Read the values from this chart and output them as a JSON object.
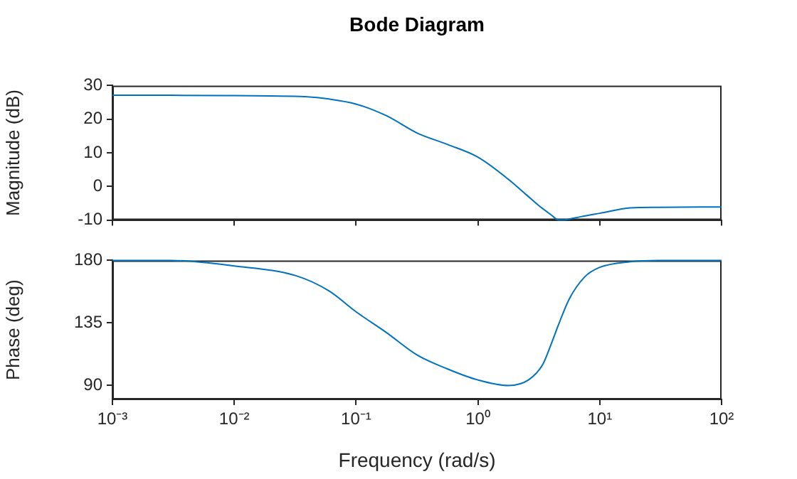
{
  "chart_data": [
    {
      "type": "line",
      "title": "Bode Diagram",
      "ylabel": "Magnitude (dB)",
      "log": "x",
      "tick_labels": "y",
      "x": [
        0.001,
        0.003,
        0.01,
        0.02,
        0.038,
        0.06,
        0.1,
        0.178,
        0.316,
        0.56,
        1,
        1.78,
        2.5,
        3.16,
        4,
        4.6,
        5,
        5.6,
        7,
        10,
        17.8,
        30,
        100
      ],
      "xlim": [
        0.001,
        100
      ],
      "xticks": [
        0.001,
        0.01,
        0.1,
        1,
        10,
        100
      ],
      "ylim": [
        -10,
        30
      ],
      "yticks": [
        -10,
        0,
        10,
        20,
        30
      ],
      "series": [
        {
          "color": "#0072bd",
          "values": [
            27.1,
            27.1,
            27,
            26.9,
            26.7,
            26,
            24.5,
            21,
            15.9,
            12.5,
            8.7,
            2.1,
            -2.5,
            -5.7,
            -8.5,
            -10,
            -10,
            -9.7,
            -9,
            -8,
            -6.4,
            -6.2,
            -6.1
          ]
        }
      ]
    },
    {
      "type": "line",
      "xlabel": "Frequency (rad/s)",
      "ylabel": "Phase (deg)",
      "log": "x",
      "x": [
        0.001,
        0.003,
        0.01,
        0.032,
        0.06,
        0.1,
        0.178,
        0.316,
        0.56,
        1,
        1.78,
        2.6,
        3.4,
        4,
        4.6,
        5.6,
        7.5,
        10,
        17.8,
        30,
        100
      ],
      "xlim": [
        0.001,
        100
      ],
      "xticks": [
        {
          "value": 0.001,
          "label": "10⁻³"
        },
        {
          "value": 0.01,
          "label": "10⁻²"
        },
        {
          "value": 0.1,
          "label": "10⁻¹"
        },
        {
          "value": 1,
          "label": "10⁰"
        },
        {
          "value": 10,
          "label": "10¹"
        },
        {
          "value": 100,
          "label": "10²"
        }
      ],
      "ylim": [
        80,
        180
      ],
      "yticks": [
        90,
        135,
        180
      ],
      "series": [
        {
          "color": "#0072bd",
          "values": [
            180,
            180,
            176,
            169,
            158,
            143,
            128,
            112,
            102,
            94,
            90,
            94,
            105,
            120,
            134,
            152,
            168,
            175,
            179,
            180,
            180
          ]
        }
      ]
    }
  ]
}
